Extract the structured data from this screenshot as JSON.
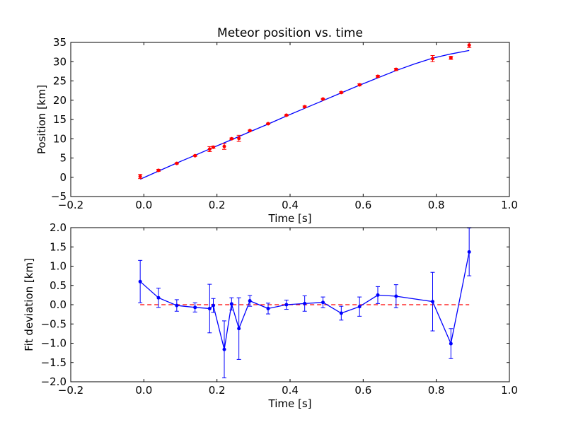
{
  "chart_data": [
    {
      "type": "scatter",
      "title": "Meteor position vs. time",
      "xlabel": "Time [s]",
      "ylabel": "Position [km]",
      "xlim": [
        -0.2,
        1.0
      ],
      "ylim": [
        -5,
        35
      ],
      "xticks": [
        "−0.2",
        "0.0",
        "0.2",
        "0.4",
        "0.6",
        "0.8",
        "1.0"
      ],
      "yticks": [
        "−5",
        "0",
        "5",
        "10",
        "15",
        "20",
        "25",
        "30",
        "35"
      ],
      "xtick_values": [
        -0.2,
        0.0,
        0.2,
        0.4,
        0.6,
        0.8,
        1.0
      ],
      "ytick_values": [
        -5,
        0,
        5,
        10,
        15,
        20,
        25,
        30,
        35
      ],
      "grid": false,
      "measurements": {
        "color": "#ff0000",
        "x": [
          -0.01,
          0.04,
          0.09,
          0.14,
          0.18,
          0.19,
          0.22,
          0.24,
          0.26,
          0.29,
          0.34,
          0.39,
          0.44,
          0.49,
          0.54,
          0.59,
          0.64,
          0.69,
          0.79,
          0.84,
          0.89
        ],
        "y": [
          0.2,
          1.8,
          3.6,
          5.6,
          7.3,
          7.8,
          8.0,
          10.0,
          10.1,
          12.1,
          13.9,
          16.1,
          18.3,
          20.3,
          22.0,
          24.0,
          26.2,
          28.0,
          30.8,
          31.0,
          34.3
        ],
        "yerr": [
          0.55,
          0.25,
          0.15,
          0.15,
          0.65,
          0.25,
          0.75,
          0.2,
          0.8,
          0.15,
          0.15,
          0.15,
          0.2,
          0.15,
          0.2,
          0.25,
          0.25,
          0.3,
          0.8,
          0.4,
          0.65
        ]
      },
      "fit": {
        "color": "#0000ff",
        "x": [
          -0.01,
          0.04,
          0.09,
          0.14,
          0.19,
          0.24,
          0.29,
          0.34,
          0.39,
          0.44,
          0.49,
          0.54,
          0.59,
          0.64,
          0.69,
          0.74,
          0.79,
          0.84,
          0.89
        ],
        "y": [
          -0.5,
          1.6,
          3.7,
          5.7,
          7.75,
          9.75,
          11.8,
          13.8,
          15.9,
          17.9,
          19.9,
          21.9,
          23.9,
          25.8,
          27.7,
          29.4,
          30.9,
          32.0,
          32.9
        ]
      }
    },
    {
      "type": "line",
      "xlabel": "Time [s]",
      "ylabel": "Fit deviation [km]",
      "xlim": [
        -0.2,
        1.0
      ],
      "ylim": [
        -2.0,
        2.0
      ],
      "xticks": [
        "−0.2",
        "0.0",
        "0.2",
        "0.4",
        "0.6",
        "0.8",
        "1.0"
      ],
      "yticks": [
        "−2.0",
        "−1.5",
        "−1.0",
        "−0.5",
        "0.0",
        "0.5",
        "1.0",
        "1.5",
        "2.0"
      ],
      "xtick_values": [
        -0.2,
        0.0,
        0.2,
        0.4,
        0.6,
        0.8,
        1.0
      ],
      "ytick_values": [
        -2.0,
        -1.5,
        -1.0,
        -0.5,
        0.0,
        0.5,
        1.0,
        1.5,
        2.0
      ],
      "grid": false,
      "deviation": {
        "color": "#0000ff",
        "x": [
          -0.01,
          0.04,
          0.09,
          0.14,
          0.18,
          0.19,
          0.22,
          0.24,
          0.26,
          0.29,
          0.34,
          0.39,
          0.44,
          0.49,
          0.54,
          0.59,
          0.64,
          0.69,
          0.79,
          0.84,
          0.89
        ],
        "y": [
          0.6,
          0.18,
          -0.02,
          -0.07,
          -0.1,
          -0.02,
          -1.16,
          0.02,
          -0.62,
          0.1,
          -0.1,
          0.0,
          0.03,
          0.06,
          -0.22,
          -0.05,
          0.25,
          0.22,
          0.08,
          -1.01,
          1.37
        ],
        "yerr": [
          0.55,
          0.25,
          0.15,
          0.12,
          0.63,
          0.18,
          0.74,
          0.16,
          0.8,
          0.14,
          0.14,
          0.12,
          0.2,
          0.14,
          0.18,
          0.25,
          0.22,
          0.3,
          0.76,
          0.39,
          0.62
        ]
      },
      "zero_line": {
        "color": "#ff0000",
        "x": [
          -0.01,
          0.89
        ],
        "y": [
          0.0,
          0.0
        ]
      }
    }
  ]
}
